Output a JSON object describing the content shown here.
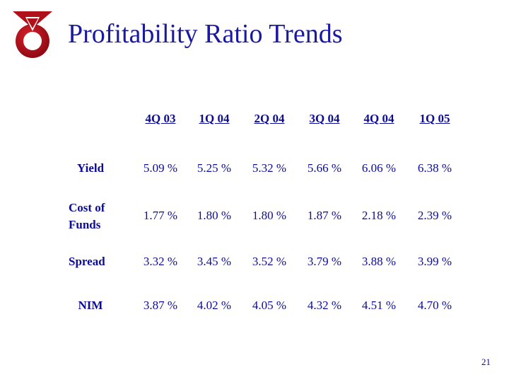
{
  "title": "Profitability Ratio Trends",
  "logo": {
    "icon": "ring-medal-logo",
    "color": "#b0101a"
  },
  "table": {
    "columns": [
      "4Q 03",
      "1Q 04",
      "2Q 04",
      "3Q 04",
      "4Q 04",
      "1Q 05"
    ],
    "rows": [
      {
        "label": "Yield",
        "values": [
          "5.09 %",
          "5.25 %",
          "5.32 %",
          "5.66 %",
          "6.06 %",
          "6.38 %"
        ]
      },
      {
        "label_line1": "Cost of",
        "label_line2": "Funds",
        "values": [
          "1.77 %",
          "1.80 %",
          "1.80 %",
          "1.87 %",
          "2.18 %",
          "2.39 %"
        ]
      },
      {
        "label": "Spread",
        "values": [
          "3.32 %",
          "3.45 %",
          "3.52 %",
          "3.79 %",
          "3.88 %",
          "3.99 %"
        ]
      },
      {
        "label": "NIM",
        "values": [
          "3.87 %",
          "4.02 %",
          "4.05 %",
          "4.32 %",
          "4.51 %",
          "4.70 %"
        ]
      }
    ]
  },
  "page_number": "21"
}
